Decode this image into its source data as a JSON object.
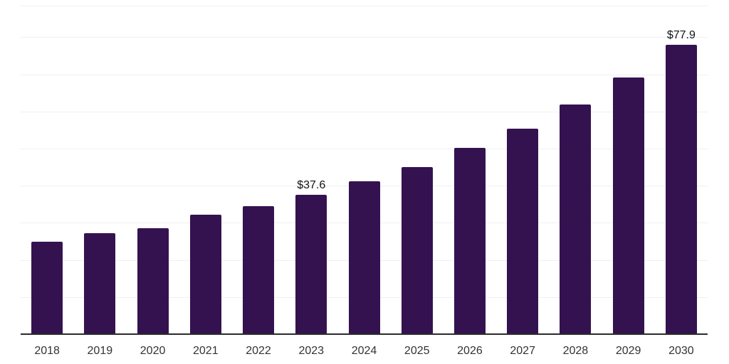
{
  "chart_data": {
    "type": "bar",
    "title": "",
    "xlabel": "",
    "ylabel": "",
    "categories": [
      "2018",
      "2019",
      "2020",
      "2021",
      "2022",
      "2023",
      "2024",
      "2025",
      "2026",
      "2027",
      "2028",
      "2029",
      "2030"
    ],
    "values": [
      24.9,
      27.2,
      28.6,
      32.2,
      34.4,
      37.6,
      41.2,
      45.1,
      50.2,
      55.3,
      61.9,
      69.2,
      77.9
    ],
    "data_labels": {
      "2023": "$37.6",
      "2030": "$77.9"
    },
    "ylim": [
      0,
      88.5
    ],
    "grid_interval": 10,
    "grid": true,
    "legend": false,
    "colors": {
      "bar": "#341250",
      "axis_line": "#2b2b2b",
      "gridline": "#f0f0f0",
      "tick_label": "#333333",
      "data_label": "#111111",
      "background": "#ffffff"
    }
  }
}
